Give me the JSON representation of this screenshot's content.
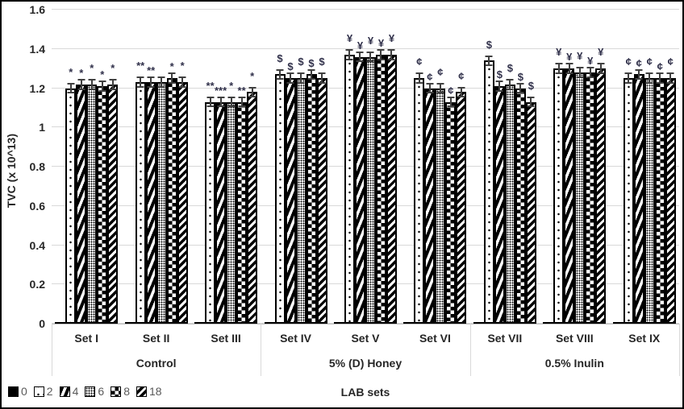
{
  "chart_data": {
    "type": "bar",
    "title": "",
    "ylabel": "TVC (x 10^13)",
    "xlabel": "LAB sets",
    "ylim": [
      0,
      1.6
    ],
    "ytick_step": 0.2,
    "yticks": [
      "0",
      "0.2",
      "0.4",
      "0.6",
      "0.8",
      "1",
      "1.2",
      "1.4",
      "1.6"
    ],
    "grid": true,
    "legend_position": "bottom-left",
    "series_keys": [
      "0",
      "2",
      "4",
      "6",
      "8",
      "18"
    ],
    "legend_entries": [
      {
        "label": "0",
        "pattern": "solid-black"
      },
      {
        "label": "2",
        "pattern": "sparse-dots"
      },
      {
        "label": "4",
        "pattern": "wide-diagonal-stripes"
      },
      {
        "label": "6",
        "pattern": "fine-dots"
      },
      {
        "label": "8",
        "pattern": "checkerboard"
      },
      {
        "label": "18",
        "pattern": "diagonal-stripes"
      }
    ],
    "error_bar": 0.02,
    "category_groups": [
      {
        "label": "Control",
        "sets": [
          "Set I",
          "Set II",
          "Set III"
        ]
      },
      {
        "label": "5% (D) Honey",
        "sets": [
          "Set IV",
          "Set V",
          "Set VI"
        ]
      },
      {
        "label": "0.5% Inulin",
        "sets": [
          "Set VII",
          "Set VIII",
          "Set IX"
        ]
      }
    ],
    "groups": [
      {
        "set": "Set I",
        "parent": "Control",
        "values": [
          0.01,
          1.2,
          1.22,
          1.22,
          1.21,
          1.22
        ],
        "annotations": [
          "",
          "*",
          "*",
          "*",
          "*",
          "*"
        ]
      },
      {
        "set": "Set II",
        "parent": "Control",
        "values": [
          0.01,
          1.23,
          1.23,
          1.23,
          1.25,
          1.23
        ],
        "annotations": [
          "",
          "**",
          "**",
          "",
          "*",
          "*"
        ]
      },
      {
        "set": "Set III",
        "parent": "Control",
        "values": [
          0.01,
          1.13,
          1.13,
          1.13,
          1.13,
          1.18
        ],
        "annotations": [
          "",
          "**",
          "***",
          "*",
          "**",
          "*"
        ]
      },
      {
        "set": "Set IV",
        "parent": "5% (D) Honey",
        "values": [
          0.01,
          1.27,
          1.25,
          1.25,
          1.27,
          1.25
        ],
        "annotations": [
          "",
          "$",
          "$",
          "$",
          "$",
          "$"
        ]
      },
      {
        "set": "Set V",
        "parent": "5% (D) Honey",
        "values": [
          0.01,
          1.37,
          1.36,
          1.36,
          1.37,
          1.37
        ],
        "annotations": [
          "",
          "¥",
          "¥",
          "¥",
          "¥",
          "¥"
        ]
      },
      {
        "set": "Set VI",
        "parent": "5% (D) Honey",
        "values": [
          0.01,
          1.25,
          1.2,
          1.2,
          1.13,
          1.18
        ],
        "annotations": [
          "",
          "¢",
          "¢",
          "¢",
          "¢",
          "¢"
        ]
      },
      {
        "set": "Set VII",
        "parent": "0.5% Inulin",
        "values": [
          0.01,
          1.34,
          1.21,
          1.22,
          1.2,
          1.13
        ],
        "annotations": [
          "",
          "$",
          "$",
          "$",
          "$",
          "$"
        ]
      },
      {
        "set": "Set VIII",
        "parent": "0.5% Inulin",
        "values": [
          0.01,
          1.3,
          1.3,
          1.28,
          1.28,
          1.3
        ],
        "annotations": [
          "",
          "¥",
          "¥",
          "¥",
          "¥",
          "¥"
        ]
      },
      {
        "set": "Set IX",
        "parent": "0.5% Inulin",
        "values": [
          0.01,
          1.25,
          1.27,
          1.25,
          1.25,
          1.25
        ],
        "annotations": [
          "",
          "¢",
          "¢",
          "¢",
          "¢",
          "¢"
        ]
      }
    ]
  }
}
